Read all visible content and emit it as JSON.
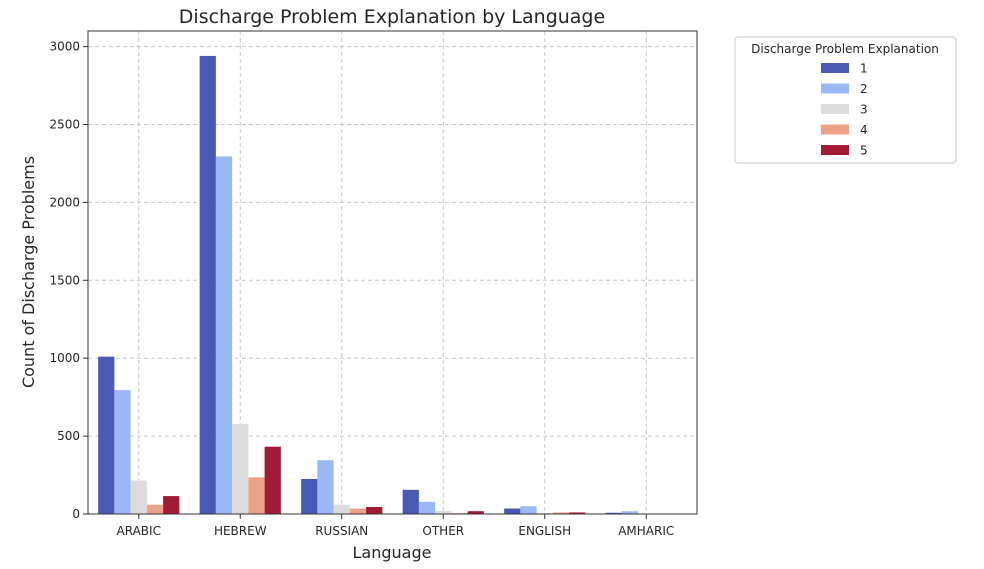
{
  "chart_data": {
    "type": "bar",
    "title": "Discharge Problem Explanation by Language",
    "xlabel": "Language",
    "ylabel": "Count of Discharge Problems",
    "ylim": [
      0,
      3100
    ],
    "yticks": [
      0,
      500,
      1000,
      1500,
      2000,
      2500,
      3000
    ],
    "grid": true,
    "legend": {
      "title": "Discharge Problem Explanation",
      "placement": "outside-top-right"
    },
    "categories": [
      "ARABIC",
      "HEBREW",
      "RUSSIAN",
      "OTHER",
      "ENGLISH",
      "AMHARIC"
    ],
    "series": [
      {
        "name": "1",
        "color": "#4a59b4",
        "values": [
          1010,
          2940,
          225,
          155,
          35,
          8
        ]
      },
      {
        "name": "2",
        "color": "#9bb7f4",
        "values": [
          795,
          2295,
          345,
          78,
          50,
          18
        ]
      },
      {
        "name": "3",
        "color": "#dcdcdc",
        "values": [
          215,
          578,
          60,
          20,
          5,
          2
        ]
      },
      {
        "name": "4",
        "color": "#eda189",
        "values": [
          60,
          235,
          35,
          5,
          10,
          1
        ]
      },
      {
        "name": "5",
        "color": "#a31a35",
        "values": [
          115,
          432,
          45,
          18,
          10,
          1
        ]
      }
    ]
  }
}
